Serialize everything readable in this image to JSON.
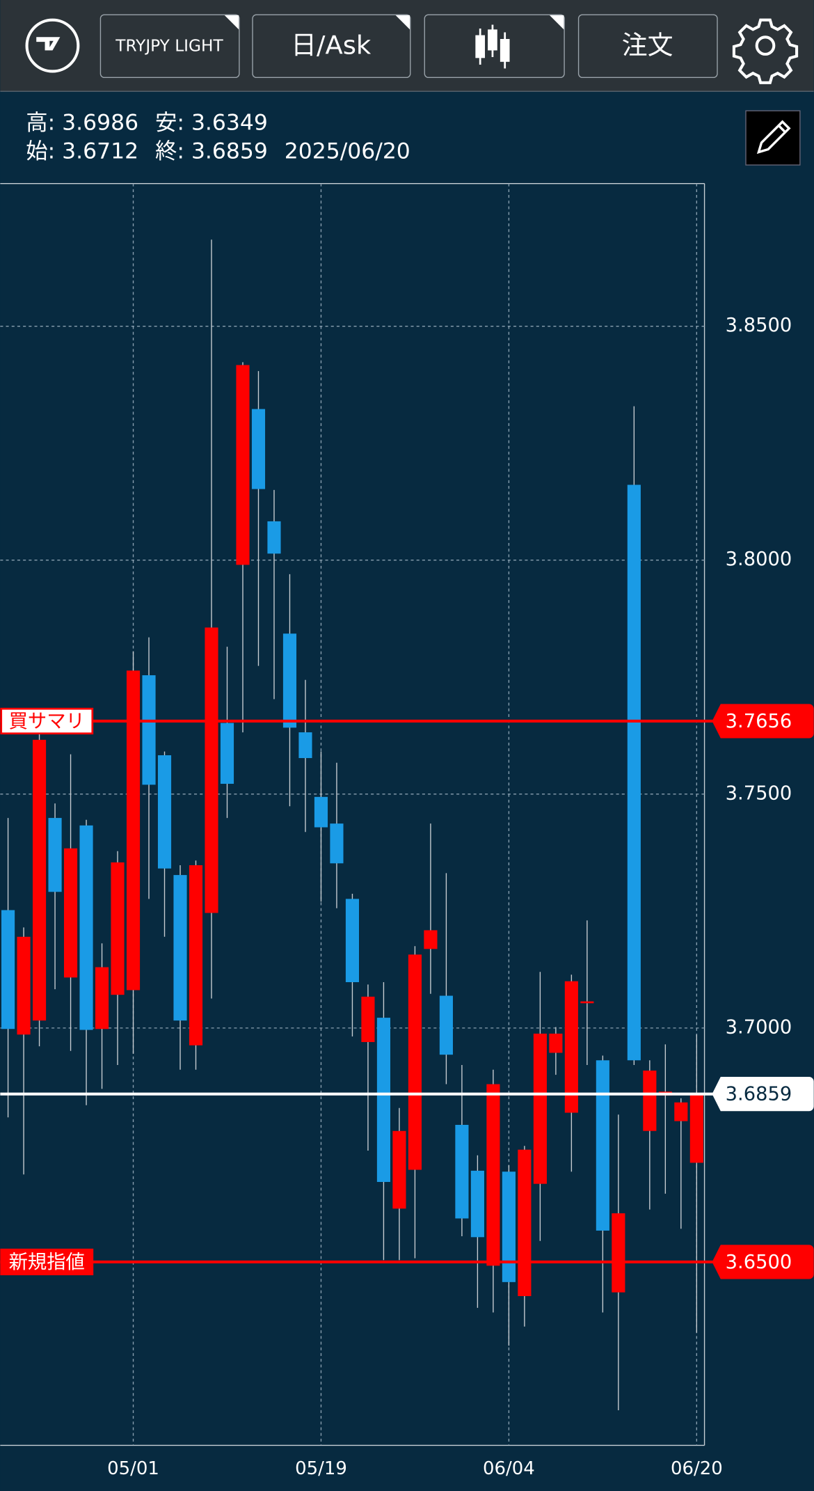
{
  "toolbar": {
    "symbol": "TRYJPY LIGHT",
    "period": "日/Ask",
    "order": "注文"
  },
  "info": {
    "row1": [
      "高: 3.6986",
      "安: 3.6349"
    ],
    "row2": [
      "始: 3.6712",
      "終: 3.6859",
      "2025/06/20"
    ]
  },
  "chart_data": {
    "type": "candlestick",
    "categories": [
      null,
      null,
      null,
      null,
      null,
      null,
      null,
      null,
      "05/01",
      null,
      null,
      null,
      null,
      null,
      null,
      null,
      null,
      null,
      null,
      null,
      "05/19",
      null,
      null,
      null,
      null,
      null,
      null,
      null,
      null,
      null,
      null,
      null,
      "06/04",
      null,
      null,
      null,
      null,
      null,
      null,
      null,
      null,
      null,
      null,
      null,
      "06/20"
    ],
    "open": [
      3.7252,
      3.6986,
      3.7016,
      3.7449,
      3.7108,
      3.7433,
      3.6998,
      3.7071,
      3.7081,
      3.7754,
      3.7583,
      3.7327,
      3.6963,
      3.7246,
      3.7652,
      3.799,
      3.8323,
      3.8083,
      3.7843,
      3.7632,
      3.7494,
      3.7437,
      3.7276,
      3.697,
      3.7022,
      3.6614,
      3.6697,
      3.7169,
      3.7069,
      3.6793,
      3.6695,
      3.6492,
      3.6693,
      3.6427,
      3.6667,
      3.6947,
      3.6819,
      3.7053,
      3.6931,
      3.6435,
      3.8161,
      3.678,
      3.6856,
      3.6801,
      3.6712
    ],
    "high": [
      3.7449,
      3.7215,
      3.7632,
      3.748,
      3.7585,
      3.7445,
      3.7181,
      3.7378,
      3.7805,
      3.7835,
      3.7591,
      3.7348,
      3.7358,
      3.8685,
      3.7815,
      3.8423,
      3.8404,
      3.815,
      3.797,
      3.7744,
      3.7591,
      3.7567,
      3.7287,
      3.7093,
      3.7098,
      3.6829,
      3.7175,
      3.7437,
      3.7331,
      3.6921,
      3.6728,
      3.6911,
      3.6707,
      3.6748,
      3.712,
      3.7002,
      3.7114,
      3.723,
      3.6941,
      3.6815,
      3.8329,
      3.6931,
      3.6965,
      3.685,
      3.6986
    ],
    "low": [
      3.6809,
      3.6687,
      3.6961,
      3.7083,
      3.6951,
      3.6835,
      3.687,
      3.6921,
      3.6945,
      3.7276,
      3.7195,
      3.6911,
      3.6911,
      3.7063,
      3.7449,
      3.7632,
      3.7774,
      3.7703,
      3.7474,
      3.7419,
      3.727,
      3.7256,
      3.6982,
      3.6738,
      3.6504,
      3.6504,
      3.6508,
      3.7073,
      3.688,
      3.6555,
      3.6402,
      3.6392,
      3.6321,
      3.6362,
      3.6545,
      3.69,
      3.6693,
      3.6921,
      3.6392,
      3.6183,
      3.6921,
      3.6612,
      3.6646,
      3.6571,
      3.6349
    ],
    "close": [
      3.6998,
      3.7195,
      3.7616,
      3.7291,
      3.7384,
      3.6996,
      3.713,
      3.7354,
      3.7764,
      3.752,
      3.7341,
      3.7016,
      3.7348,
      3.7856,
      3.7522,
      3.8417,
      3.8152,
      3.8014,
      3.7642,
      3.7577,
      3.7429,
      3.7352,
      3.7098,
      3.7067,
      3.6671,
      3.678,
      3.7157,
      3.7209,
      3.6943,
      3.6593,
      3.6553,
      3.688,
      3.6457,
      3.674,
      3.6988,
      3.6988,
      3.71,
      3.7057,
      3.6567,
      3.6604,
      3.6931,
      3.6909,
      3.6864,
      3.6841,
      3.6859
    ],
    "up_color": "#ff0000",
    "down_color": "#1a9be6",
    "ylim": [
      3.6108,
      3.8805
    ],
    "yticks": [
      {
        "value": 3.85,
        "label": "3.8500"
      },
      {
        "value": 3.8,
        "label": "3.8000"
      },
      {
        "value": 3.75,
        "label": "3.7500"
      },
      {
        "value": 3.7,
        "label": "3.7000"
      }
    ],
    "grid": true,
    "lines": [
      {
        "name": "買サマリ",
        "color": "#ff0000",
        "value": 3.7656,
        "value_label": "3.7656"
      },
      {
        "name": "新規指値",
        "color": "#ff0000",
        "value": 3.65,
        "value_label": "3.6500"
      }
    ],
    "last_price": {
      "value": 3.6859,
      "label": "3.6859",
      "color": "#ffffff"
    }
  }
}
